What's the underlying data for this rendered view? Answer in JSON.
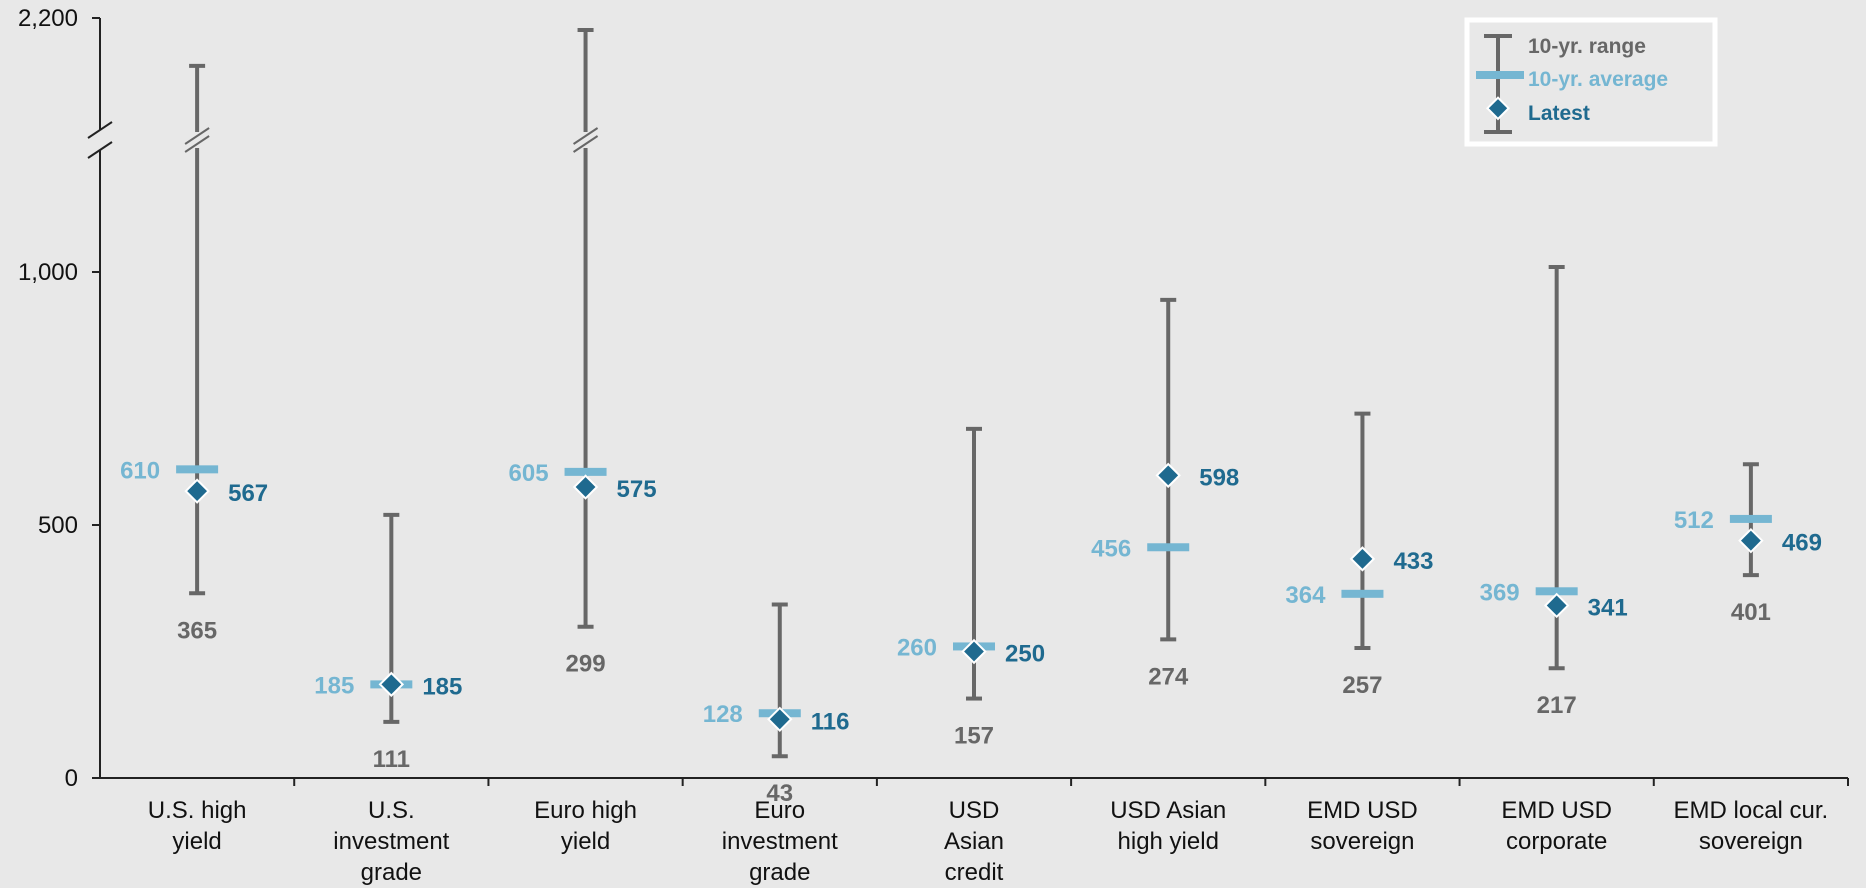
{
  "chart_data": {
    "type": "range",
    "y_axis": {
      "ticks": [
        "0",
        "500",
        "1,000",
        "2,200"
      ],
      "tick_values": [
        0,
        500,
        1000,
        2200
      ],
      "ylim": [
        0,
        2200
      ],
      "broken_axis": true
    },
    "legend": {
      "placement": "top-right",
      "entries": [
        {
          "key": "range",
          "label": "10-yr. range",
          "color": "#676767"
        },
        {
          "key": "average",
          "label": "10-yr. average",
          "color": "#75b6d2"
        },
        {
          "key": "latest",
          "label": "Latest",
          "color": "#1f6a8f"
        }
      ]
    },
    "categories": [
      {
        "label": [
          "U.S. high",
          "yield"
        ],
        "min": 365,
        "max_visual": 1980,
        "max_broken": true,
        "average": 610,
        "latest": 567,
        "min_label": "365",
        "average_label": "610",
        "latest_label": "567"
      },
      {
        "label": [
          "U.S.",
          "investment",
          "grade"
        ],
        "min": 111,
        "max": 520,
        "average": 185,
        "latest": 185,
        "min_label": "111",
        "average_label": "185",
        "latest_label": "185"
      },
      {
        "label": [
          "Euro high",
          "yield"
        ],
        "min": 299,
        "max_visual": 2145,
        "max_broken": true,
        "average": 605,
        "latest": 575,
        "min_label": "299",
        "average_label": "605",
        "latest_label": "575"
      },
      {
        "label": [
          "Euro",
          "investment",
          "grade"
        ],
        "min": 43,
        "max": 343,
        "average": 128,
        "latest": 116,
        "min_label": "43",
        "average_label": "128",
        "latest_label": "116"
      },
      {
        "label": [
          "USD",
          "Asian",
          "credit"
        ],
        "min": 157,
        "max": 690,
        "average": 260,
        "latest": 250,
        "min_label": "157",
        "average_label": "260",
        "latest_label": "250"
      },
      {
        "label": [
          "USD Asian",
          "high yield"
        ],
        "min": 274,
        "max": 945,
        "average": 456,
        "latest": 598,
        "min_label": "274",
        "average_label": "456",
        "latest_label": "598"
      },
      {
        "label": [
          "EMD USD",
          "sovereign"
        ],
        "min": 257,
        "max": 720,
        "average": 364,
        "latest": 433,
        "min_label": "257",
        "average_label": "364",
        "latest_label": "433"
      },
      {
        "label": [
          "EMD USD",
          "corporate"
        ],
        "min": 217,
        "max": 1010,
        "average": 369,
        "latest": 341,
        "min_label": "217",
        "average_label": "369",
        "latest_label": "341"
      },
      {
        "label": [
          "EMD local cur.",
          "sovereign"
        ],
        "min": 401,
        "max": 620,
        "average": 512,
        "latest": 469,
        "min_label": "401",
        "average_label": "512",
        "latest_label": "469"
      }
    ]
  }
}
